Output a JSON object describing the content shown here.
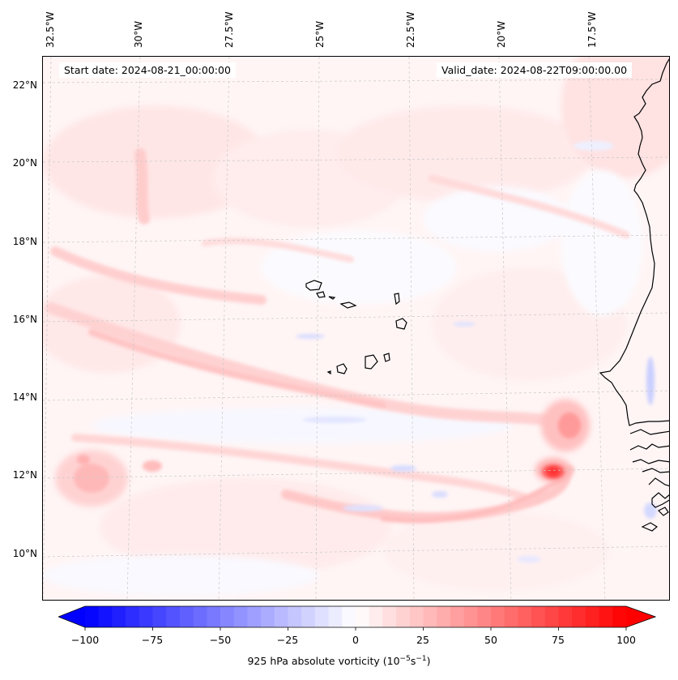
{
  "map": {
    "start_date_text": "Start date: 2024-08-21_00:00:00",
    "valid_date_text": "Valid_date: 2024-08-22T09:00:00.00",
    "lon_labels": [
      "32.5°W",
      "30°W",
      "27.5°W",
      "25°W",
      "22.5°W",
      "20°W",
      "17.5°W"
    ],
    "lat_labels": [
      "22°N",
      "20°N",
      "18°N",
      "16°N",
      "14°N",
      "12°N",
      "10°N"
    ],
    "field": "925 hPa absolute vorticity",
    "colormap": "bwr",
    "neutral_color": "#ffffff",
    "positive_color": "#ff0000",
    "negative_color": "#0000ff"
  },
  "colorbar": {
    "label_main": "925 hPa absolute vorticity (10",
    "label_exp1": "−5",
    "label_mid": "s",
    "label_exp2": "−1",
    "label_end": ")",
    "min": -100,
    "max": 100,
    "step": 5,
    "extend": "both",
    "ticks": [
      "−100",
      "−75",
      "−50",
      "−25",
      "0",
      "25",
      "50",
      "75",
      "100"
    ]
  }
}
